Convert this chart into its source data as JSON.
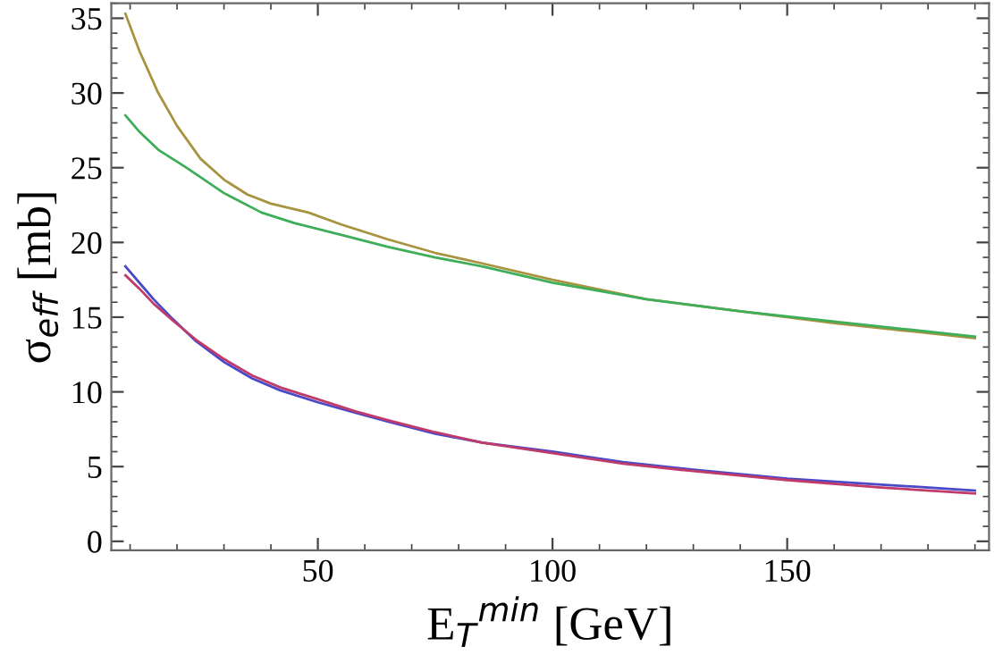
{
  "chart_data": {
    "type": "line",
    "xlabel": "E$_{T}$$^{min}$ [GeV]",
    "ylabel": "σ$_{eff}$ [mb]",
    "xlim": [
      6,
      193
    ],
    "ylim": [
      -0.6,
      36
    ],
    "xticks": [
      50,
      100,
      150
    ],
    "yticks": [
      0,
      5,
      10,
      15,
      20,
      25,
      30,
      35
    ],
    "grid": false,
    "legend": false,
    "marker": "none",
    "line_style": "solid",
    "series": [
      {
        "color": "#a8933f",
        "x": [
          9,
          12,
          16,
          20,
          25,
          30,
          35,
          40,
          48,
          55,
          65,
          75,
          85,
          100,
          120,
          140,
          160,
          175,
          190
        ],
        "values": [
          35.3,
          32.8,
          30.0,
          27.8,
          25.6,
          24.2,
          23.2,
          22.6,
          22.0,
          21.2,
          20.2,
          19.3,
          18.6,
          17.5,
          16.2,
          15.4,
          14.6,
          14.1,
          13.6
        ]
      },
      {
        "color": "#3fae5a",
        "x": [
          9,
          12,
          16,
          22,
          30,
          38,
          45,
          55,
          65,
          75,
          85,
          100,
          120,
          140,
          160,
          175,
          190
        ],
        "values": [
          28.5,
          27.4,
          26.2,
          25.0,
          23.3,
          22.0,
          21.3,
          20.5,
          19.7,
          19.0,
          18.4,
          17.3,
          16.2,
          15.4,
          14.7,
          14.2,
          13.7
        ]
      },
      {
        "color": "#4a4ac8",
        "x": [
          9,
          12,
          15,
          19,
          24,
          30,
          36,
          42,
          50,
          58,
          65,
          75,
          85,
          100,
          115,
          130,
          150,
          170,
          190
        ],
        "values": [
          18.4,
          17.3,
          16.2,
          14.9,
          13.4,
          12.0,
          10.9,
          10.1,
          9.3,
          8.6,
          8.0,
          7.2,
          6.6,
          6.0,
          5.3,
          4.8,
          4.2,
          3.8,
          3.4
        ]
      },
      {
        "color": "#c03a6a",
        "x": [
          9,
          12,
          15,
          19,
          24,
          30,
          36,
          42,
          50,
          58,
          65,
          75,
          85,
          100,
          115,
          130,
          150,
          170,
          190
        ],
        "values": [
          17.8,
          16.9,
          15.9,
          14.8,
          13.5,
          12.2,
          11.1,
          10.3,
          9.5,
          8.7,
          8.1,
          7.3,
          6.6,
          5.9,
          5.2,
          4.7,
          4.1,
          3.6,
          3.2
        ]
      }
    ]
  }
}
